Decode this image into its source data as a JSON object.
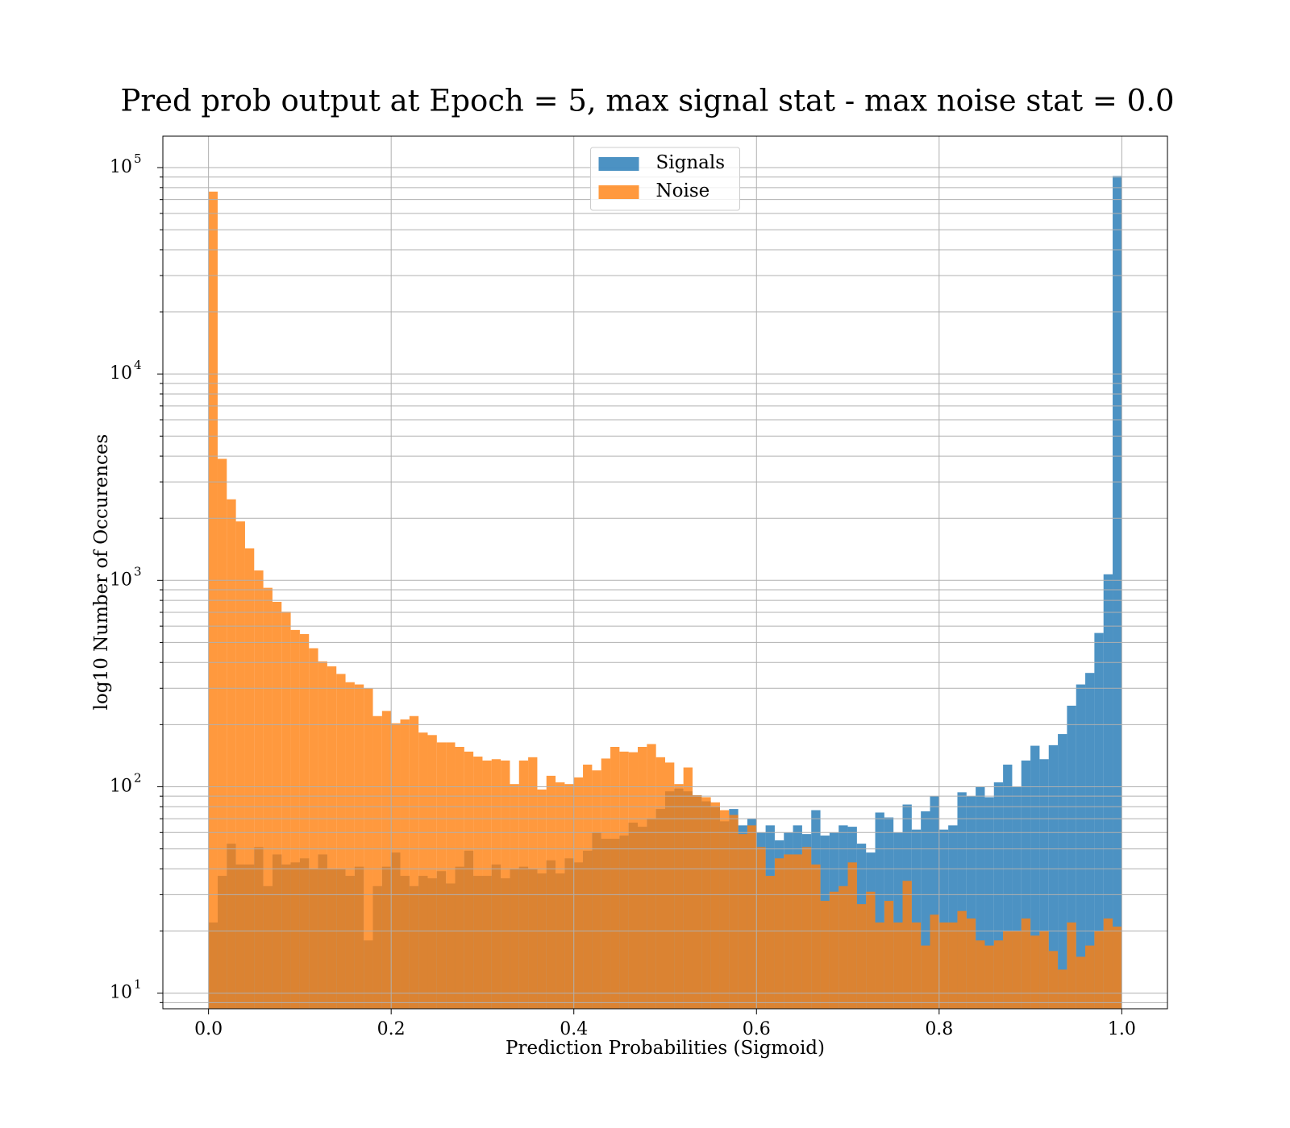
{
  "chart_data": {
    "type": "histogram",
    "title": "Pred prob output at Epoch = 5, max signal stat - max noise stat = 0.0",
    "xlabel": "Prediction Probabilities (Sigmoid)",
    "ylabel": "log10 Number of Occurences",
    "bins": [
      0,
      0.01,
      0.02,
      0.03,
      0.04,
      0.05,
      0.06,
      0.07,
      0.08,
      0.09,
      0.1,
      0.11,
      0.12,
      0.13,
      0.14,
      0.15,
      0.16,
      0.17,
      0.18,
      0.19,
      0.2,
      0.21,
      0.22,
      0.23,
      0.24,
      0.25,
      0.26,
      0.27,
      0.28,
      0.29,
      0.3,
      0.31,
      0.32,
      0.33,
      0.34,
      0.35,
      0.36,
      0.37,
      0.38,
      0.39,
      0.4,
      0.41,
      0.42,
      0.43,
      0.44,
      0.45,
      0.46,
      0.47,
      0.48,
      0.49,
      0.5,
      0.51,
      0.52,
      0.53,
      0.54,
      0.55,
      0.56,
      0.57,
      0.58,
      0.59,
      0.6,
      0.61,
      0.62,
      0.63,
      0.64,
      0.65,
      0.66,
      0.67,
      0.68,
      0.69,
      0.7,
      0.71,
      0.72,
      0.73,
      0.74,
      0.75,
      0.76,
      0.77,
      0.78,
      0.79,
      0.8,
      0.81,
      0.82,
      0.83,
      0.84,
      0.85,
      0.86,
      0.87,
      0.88,
      0.89,
      0.9,
      0.91,
      0.92,
      0.93,
      0.94,
      0.95,
      0.96,
      0.97,
      0.98,
      0.99,
      1
    ],
    "series": [
      {
        "name": "Signals",
        "color": "#1f77b4",
        "values": [
          22,
          37,
          53,
          42,
          42,
          51,
          33,
          47,
          42,
          43,
          45,
          40,
          47,
          40,
          40,
          37,
          41,
          18,
          33,
          41,
          48,
          37,
          33,
          37,
          36,
          39,
          34,
          41,
          49,
          37,
          37,
          42,
          36,
          40,
          41,
          40,
          38,
          44,
          38,
          45,
          43,
          49,
          60,
          56,
          56,
          58,
          67,
          64,
          70,
          78,
          95,
          98,
          95,
          91,
          85,
          80,
          68,
          78,
          65,
          70,
          60,
          65,
          55,
          60,
          65,
          59,
          77,
          58,
          60,
          65,
          64,
          53,
          48,
          75,
          71,
          60,
          82,
          62,
          76,
          90,
          62,
          65,
          94,
          90,
          100,
          89,
          105,
          128,
          100,
          134,
          158,
          136,
          159,
          180,
          247,
          313,
          356,
          556,
          1070,
          91000
        ]
      },
      {
        "name": "Noise",
        "color": "#ff7f0e",
        "values": [
          76500,
          3880,
          2470,
          1930,
          1430,
          1117,
          920,
          787,
          705,
          575,
          549,
          469,
          405,
          383,
          352,
          321,
          313,
          299,
          220,
          233,
          203,
          212,
          220,
          183,
          178,
          164,
          164,
          156,
          148,
          140,
          134,
          136,
          134,
          103,
          134,
          139,
          97,
          113,
          105,
          103,
          111,
          128,
          120,
          137,
          156,
          148,
          147,
          156,
          161,
          139,
          131,
          103,
          124,
          91,
          89,
          84,
          77,
          73,
          59,
          65,
          51,
          37,
          45,
          47,
          47,
          51,
          42,
          28,
          31,
          33,
          43,
          27,
          31,
          22,
          28,
          22,
          35,
          22,
          17,
          24,
          22,
          22,
          25,
          23,
          18,
          17,
          18,
          20,
          20,
          23,
          19,
          20,
          16,
          13,
          22,
          15,
          17,
          20,
          23,
          21
        ]
      }
    ],
    "xlim": [
      -0.05,
      1.05
    ],
    "xticks": [
      {
        "value": 0,
        "label": "0.0"
      },
      {
        "value": 0.2,
        "label": "0.2"
      },
      {
        "value": 0.4,
        "label": "0.4"
      },
      {
        "value": 0.6,
        "label": "0.6"
      },
      {
        "value": 0.8,
        "label": "0.8"
      },
      {
        "value": 1,
        "label": "1.0"
      }
    ],
    "ylim": [
      8.4,
      142000
    ],
    "yscale": "log",
    "yticks": [
      {
        "value": 10,
        "label": "10",
        "exponent": "1"
      },
      {
        "value": 100,
        "label": "10",
        "exponent": "2"
      },
      {
        "value": 1000,
        "label": "10",
        "exponent": "3"
      },
      {
        "value": 10000,
        "label": "10",
        "exponent": "4"
      },
      {
        "value": 100000,
        "label": "10",
        "exponent": "5"
      }
    ],
    "minor_yticks": [
      9,
      20,
      30,
      40,
      50,
      60,
      70,
      80,
      90,
      200,
      300,
      400,
      500,
      600,
      700,
      800,
      900,
      2000,
      3000,
      4000,
      5000,
      6000,
      7000,
      8000,
      9000,
      20000,
      30000,
      40000,
      50000,
      60000,
      70000,
      80000,
      90000
    ],
    "grid": true,
    "legend": "upper center"
  }
}
